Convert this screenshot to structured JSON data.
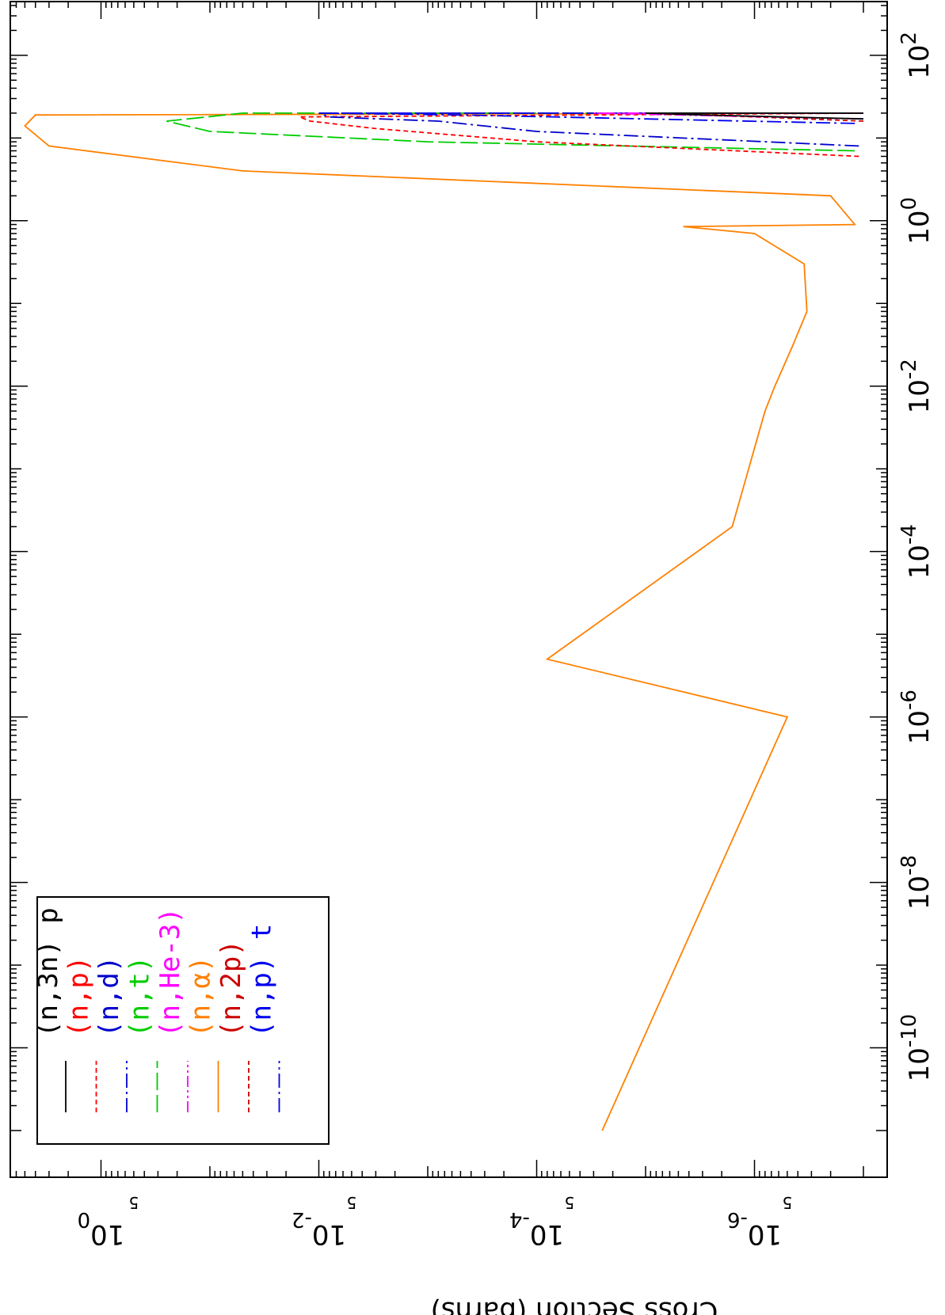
{
  "chart_data": {
    "type": "line",
    "orientation": "rotated-90-clockwise",
    "x_axis": {
      "scale": "log",
      "range": [
        1e-11,
        300
      ],
      "major_ticks": [
        1e-10,
        1e-08,
        1e-06,
        0.0001,
        0.01,
        1,
        100
      ],
      "tick_labels": [
        {
          "base": "10",
          "exp": "-10"
        },
        {
          "base": "10",
          "exp": "-8"
        },
        {
          "base": "10",
          "exp": "-6"
        },
        {
          "base": "10",
          "exp": "-4"
        },
        {
          "base": "10",
          "exp": "-2"
        },
        {
          "base": "10",
          "exp": "0"
        },
        {
          "base": "10",
          "exp": "2"
        }
      ]
    },
    "y_axis": {
      "scale": "log",
      "range": [
        1e-07,
        10
      ],
      "label": "Cross Section (barns)",
      "major_ticks": [
        1,
        0.01,
        0.0001,
        1e-06
      ],
      "tick_labels": [
        {
          "base": "10",
          "exp": "0"
        },
        {
          "base": "10",
          "exp": "-2"
        },
        {
          "base": "10",
          "exp": "-4"
        },
        {
          "base": "10",
          "exp": "-6"
        }
      ],
      "minor_label": "5",
      "minor_label_values": [
        0.5,
        0.005,
        5e-05,
        5e-07
      ]
    },
    "legend": {
      "placement": "top-left",
      "entries": [
        {
          "label": "(n,3n) p",
          "color": "#000000",
          "dash": "solid"
        },
        {
          "label": "(n,p)",
          "color": "#ff0000",
          "dash": "short-dash"
        },
        {
          "label": "(n,d)",
          "color": "#0000cc",
          "dash": "dash-dot"
        },
        {
          "label": "(n,t)",
          "color": "#00cc00",
          "dash": "long-dash"
        },
        {
          "label": "(n,He-3)",
          "color": "#ff00ff",
          "dash": "dash-dot-dot"
        },
        {
          "label": "(n,α)",
          "color": "#ff8000",
          "dash": "solid"
        },
        {
          "label": "(n,2p)",
          "color": "#cc0000",
          "dash": "short-dash"
        },
        {
          "label": "(n,p) t",
          "color": "#0000ee",
          "dash": "dash-dot"
        }
      ]
    },
    "series": [
      {
        "name": "(n,α)",
        "color": "#ff8000",
        "dash": "solid",
        "points": [
          [
            1e-11,
            2.5e-05
          ],
          [
            1e-06,
            5e-07
          ],
          [
            5e-06,
            8e-05
          ],
          [
            0.0002,
            1.6e-06
          ],
          [
            0.005,
            8e-07
          ],
          [
            0.01,
            6.5e-07
          ],
          [
            0.03,
            4.5e-07
          ],
          [
            0.08,
            3.3e-07
          ],
          [
            0.3,
            3.5e-07
          ],
          [
            0.7,
            1e-06
          ],
          [
            0.85,
            4.5e-06
          ],
          [
            0.9,
            1.2e-07
          ],
          [
            2,
            2e-07
          ],
          [
            4,
            0.05
          ],
          [
            8,
            3
          ],
          [
            14,
            5
          ],
          [
            19,
            4
          ],
          [
            20,
            1e-07
          ]
        ]
      },
      {
        "name": "(n,t)",
        "color": "#00cc00",
        "dash": "long-dash",
        "points": [
          [
            7,
            1.2e-07
          ],
          [
            9,
            0.001
          ],
          [
            12,
            0.1
          ],
          [
            16,
            0.25
          ],
          [
            20,
            0.05
          ],
          [
            20,
            1e-07
          ]
        ]
      },
      {
        "name": "(n,p)",
        "color": "#ff0000",
        "dash": "short-dash",
        "points": [
          [
            6,
            1.1e-07
          ],
          [
            9,
            0.0001
          ],
          [
            13,
            0.003
          ],
          [
            16,
            0.012
          ],
          [
            18,
            0.015
          ],
          [
            20,
            1e-07
          ]
        ]
      },
      {
        "name": "(n,d)",
        "color": "#0000cc",
        "dash": "dash-dot",
        "points": [
          [
            8,
            1.1e-07
          ],
          [
            12,
            0.0001
          ],
          [
            16,
            0.0008
          ],
          [
            18,
            0.008
          ],
          [
            20,
            0.01
          ],
          [
            20,
            1e-07
          ]
        ]
      },
      {
        "name": "(n,p) t",
        "color": "#0000ee",
        "dash": "dash-dot",
        "points": [
          [
            15,
            1.2e-07
          ],
          [
            17,
            1e-05
          ],
          [
            19,
            0.0005
          ],
          [
            20,
            0.01
          ],
          [
            20,
            1e-07
          ]
        ]
      },
      {
        "name": "(n,2p)",
        "color": "#cc0000",
        "dash": "short-dash",
        "points": [
          [
            16,
            1e-07
          ],
          [
            18,
            1e-06
          ],
          [
            20,
            1e-05
          ],
          [
            20,
            1e-07
          ]
        ]
      },
      {
        "name": "(n,He-3)",
        "color": "#ff00ff",
        "dash": "dash-dot-dot",
        "points": [
          [
            17,
            1e-07
          ],
          [
            19,
            5e-06
          ],
          [
            20,
            3e-05
          ],
          [
            20,
            1e-07
          ]
        ]
      },
      {
        "name": "(n,3n) p",
        "color": "#000000",
        "dash": "solid",
        "points": [
          [
            17,
            1e-07
          ],
          [
            19,
            3e-06
          ],
          [
            20,
            1e-05
          ],
          [
            20,
            1e-07
          ]
        ]
      }
    ],
    "grid": false
  }
}
